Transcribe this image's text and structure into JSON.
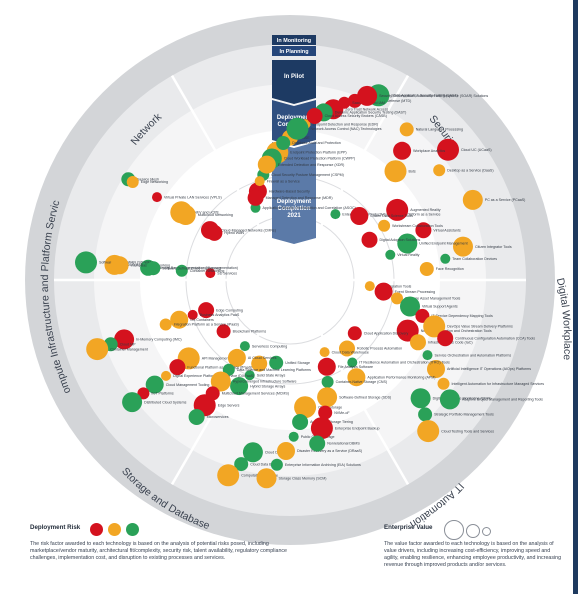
{
  "colors": {
    "red": "#d4121e",
    "orange": "#f2a624",
    "green": "#2aa158",
    "ring_outer": "#d3d5d8",
    "ring_inner": "#e9eaec",
    "navy": "#1d3a63"
  },
  "bands": {
    "monitoring": "In Monitoring",
    "planning": "In Planning",
    "pilot": "In Pilot",
    "c2022": "Deployment Completion 2022",
    "c2021": "Deployment Completion 2021"
  },
  "sectors": [
    "Network",
    "Security",
    "Digital Workplace",
    "IT Automation",
    "Storage and Database",
    "Compute Infrastructure and Platform Services"
  ],
  "items": [
    {
      "label": "SD Services",
      "r": "r"
    },
    {
      "label": "NFV and uCPE",
      "r": "o"
    },
    {
      "label": "Wi-Fi 6 (802.11ax)",
      "r": "o"
    },
    {
      "label": "Cloud-Managed Networks (CMNs)",
      "r": "r"
    },
    {
      "label": "Identity-Based Segmentation (Microsegmentation)",
      "r": "g"
    },
    {
      "label": "Service Mesh",
      "r": "g"
    },
    {
      "label": "Container Networking",
      "r": "g"
    },
    {
      "label": "Virtual Private LAN Services (VPLS)",
      "r": "r"
    },
    {
      "label": "Software-Defined WAN (SD-WAN)",
      "r": "g"
    },
    {
      "label": "Multicloud Networking",
      "r": "o"
    },
    {
      "label": "Intent-Based Networking",
      "r": "o"
    },
    {
      "label": "Hybrid WAN",
      "r": "r"
    },
    {
      "label": "Software Defined Cloud Interconnect",
      "r": "g"
    },
    {
      "label": "Edge Networking",
      "r": "o"
    },
    {
      "label": "Application Security Orchestration and Correlation (ASOC)",
      "r": "g"
    },
    {
      "label": "Endpoint Protection Platform (EPP)",
      "r": "o"
    },
    {
      "label": "Zero Trust Network Access",
      "r": "r"
    },
    {
      "label": "Hardware-Based Security",
      "r": "r"
    },
    {
      "label": "SASE",
      "r": "o"
    },
    {
      "label": "Mobile Threat Defense (MTD)",
      "r": "r"
    },
    {
      "label": "Cloud Security Posture Management (CSPM)",
      "r": "g"
    },
    {
      "label": "Endpoint Detection and Response (EDR)",
      "r": "o"
    },
    {
      "label": "Static Application Security Testing (SAST)",
      "r": "g"
    },
    {
      "label": "Cloud Workload Protection Platform (CWPP)",
      "r": "g"
    },
    {
      "label": "Dynamic Application Security Testing (DAST)",
      "r": "g"
    },
    {
      "label": "Managed Detection and Response (MDR)",
      "r": "r"
    },
    {
      "label": "Database Audit and Protection",
      "r": "g"
    },
    {
      "label": "SaaS-Delivered IAM",
      "r": "r"
    },
    {
      "label": "Firewall as a Service",
      "r": "o"
    },
    {
      "label": "Network Access Control (NAC) Technologies",
      "r": "g"
    },
    {
      "label": "Security Orchestration, Automation and Response (SOAR) Solutions",
      "r": "r"
    },
    {
      "label": "Extended Detection and Response (XDR)",
      "r": "o"
    },
    {
      "label": "Cloud Access Security Brokers (CASB)",
      "r": "r"
    },
    {
      "label": "Enterprise High-Productivity Application Platform as a Service",
      "r": "g"
    },
    {
      "label": "Augmented Reality",
      "r": "r"
    },
    {
      "label": "Citizen Integrator Tools",
      "r": "o"
    },
    {
      "label": "Citizen Data Science Tools",
      "r": "r"
    },
    {
      "label": "Virtual Assistants",
      "r": "r"
    },
    {
      "label": "Natural Language Processing",
      "r": "o"
    },
    {
      "label": "Workstream Collaboration Tools",
      "r": "o"
    },
    {
      "label": "Team Collaboration Devices",
      "r": "g"
    },
    {
      "label": "Cloud UC (UCaaS)",
      "r": "r"
    },
    {
      "label": "Unified Endpoint Management",
      "r": "g"
    },
    {
      "label": "Workplace Analytics",
      "r": "r"
    },
    {
      "label": "Digital Adoption Solutions",
      "r": "r"
    },
    {
      "label": "Face Recognition",
      "r": "o"
    },
    {
      "label": "Desktop as a Service (DaaS)",
      "r": "o"
    },
    {
      "label": "Virtual Reality",
      "r": "g"
    },
    {
      "label": "Bots",
      "r": "o"
    },
    {
      "label": "PC as a Service (PCaaS)",
      "r": "o"
    },
    {
      "label": "Cloud Migration Tools",
      "r": "o"
    },
    {
      "label": "Network Automation and Orchestration Tools",
      "r": "r"
    },
    {
      "label": "Digital Experience Monitoring (DEM)",
      "r": "g"
    },
    {
      "label": "Event Stream Processing",
      "r": "r"
    },
    {
      "label": "Infrastructure as Code (IaC)",
      "r": "o"
    },
    {
      "label": "Strategic Portfolio Management Tools",
      "r": "g"
    },
    {
      "label": "Software Asset Management Tools",
      "r": "o"
    },
    {
      "label": "Service Orchestration and Automation Platforms",
      "r": "g"
    },
    {
      "label": "Cloud Testing Tools and Services",
      "r": "o"
    },
    {
      "label": "Virtual Support Agents",
      "r": "g"
    },
    {
      "label": "Artificial Intelligence IT Operations (AIOps) Platforms",
      "r": "o"
    },
    {
      "label": "Robotic Process Automation",
      "r": "o"
    },
    {
      "label": "IT Service Dependency Mapping Tools",
      "r": "r"
    },
    {
      "label": "Intelligent Automation for Infrastructure Managed Services",
      "r": "o"
    },
    {
      "label": "IT Resilience Automation and Orchestration (ITRO) Tools",
      "r": "g"
    },
    {
      "label": "DevOps Value Stream Delivery Platforms",
      "r": "o"
    },
    {
      "label": "Adaptive Project Management and Reporting Tools",
      "r": "g"
    },
    {
      "label": "Application Performance Monitoring (APM)",
      "r": "o"
    },
    {
      "label": "Continuous Configuration Automation (CCA) Tools",
      "r": "r"
    },
    {
      "label": "Cloud Application Discovery",
      "r": "r"
    },
    {
      "label": "Cloud Data Warehouse",
      "r": "o"
    },
    {
      "label": "Object Storage",
      "r": "o"
    },
    {
      "label": "Cloud DBMS",
      "r": "g"
    },
    {
      "label": "File Analysis Software",
      "r": "r"
    },
    {
      "label": "Automated Storage Tiering",
      "r": "g"
    },
    {
      "label": "Cloud Data Backup",
      "r": "g"
    },
    {
      "label": "Container-Native Storage (CNS)",
      "r": "g"
    },
    {
      "label": "Public Cloud Storage",
      "r": "g"
    },
    {
      "label": "Computational Storage",
      "r": "o"
    },
    {
      "label": "Software-Defined Storage (SDS)",
      "r": "o"
    },
    {
      "label": "Disaster Recovery as a Service (DRaaS)",
      "r": "o"
    },
    {
      "label": "DNC",
      "r": "o"
    },
    {
      "label": "NVMe-oF",
      "r": "r"
    },
    {
      "label": "Enterprise Information Archiving (EIA) Solutions",
      "r": "g"
    },
    {
      "label": "Solid State Arrays",
      "r": "g"
    },
    {
      "label": "Enterprise Endpoint Backup",
      "r": "r"
    },
    {
      "label": "Storage Class Memory (SCM)",
      "r": "o"
    },
    {
      "label": "Hybrid Storage Arrays",
      "r": "g"
    },
    {
      "label": "Nonrelational DBMS",
      "r": "g"
    },
    {
      "label": "Unified Storage",
      "r": "g"
    },
    {
      "label": "Serverless Computing",
      "r": "g"
    },
    {
      "label": "API Management PaaS",
      "r": "o"
    },
    {
      "label": "In-Memory Computing (IMC)",
      "r": "r"
    },
    {
      "label": "AI Cloud Services",
      "r": "o"
    },
    {
      "label": "Functional Platform as a Service (fPaaS)",
      "r": "r"
    },
    {
      "label": "Cloud MP",
      "r": "g"
    },
    {
      "label": "Data Science and Machine Learning Platforms",
      "r": "g"
    },
    {
      "label": "Digital Experience Platform as a Service (DXPaaS)",
      "r": "o"
    },
    {
      "label": "Container Management",
      "r": "o"
    },
    {
      "label": "Hyperconverged Infrastructure Software",
      "r": "o"
    },
    {
      "label": "Cloud Management Tooling",
      "r": "g"
    },
    {
      "label": "Edge Computing",
      "r": "r"
    },
    {
      "label": "Multicloud Management Services (MCMS)",
      "r": "r"
    },
    {
      "label": "IIoT Platforms",
      "r": "r"
    },
    {
      "label": "Business Analytics PaaS",
      "r": "r"
    },
    {
      "label": "Edge Servers",
      "r": "r"
    },
    {
      "label": "Distributed Cloud Systems",
      "r": "g"
    },
    {
      "label": "OS Containers",
      "r": "o"
    },
    {
      "label": "Microservices",
      "r": "g"
    },
    {
      "label": "Blockchain Platforms",
      "r": "r"
    },
    {
      "label": "Integration Platform as a Service (iPaaS)",
      "r": "o"
    }
  ],
  "legend": {
    "risk_title": "Deployment Risk",
    "risk_desc": "The risk factor awarded to each technology is based on the analysis of potential risks posed, including marketplace/vendor maturity, architectural fit/complexity, security risk, talent availability, regulatory compliance challenges, implementation cost, and disruption to existing processes and services.",
    "value_title": "Enterprise Value",
    "value_desc": "The value factor awarded to each technology is based on the analysis of value drivers, including increasing cost-efficiency, improving speed and agility, enabling resilience, enhancing employee productivity, and increasing revenue through improved products and/or services."
  }
}
